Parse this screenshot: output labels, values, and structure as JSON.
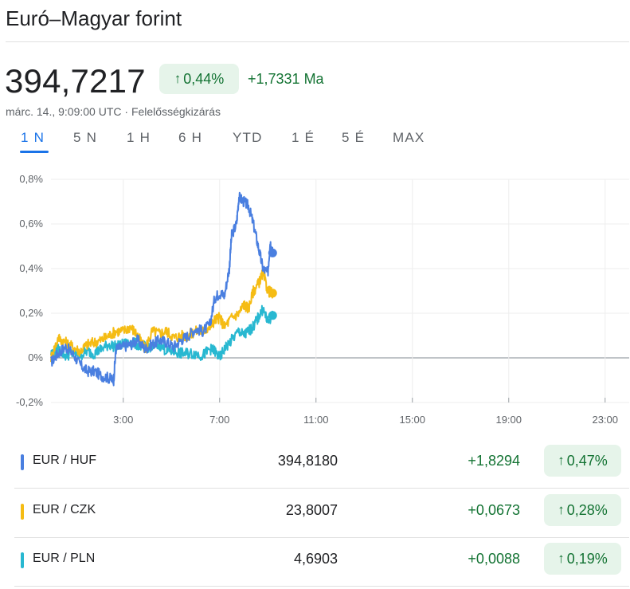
{
  "header": {
    "title": "Euró–Magyar forint",
    "price": "394,7217",
    "change_pct": "0,44%",
    "change_abs": "+1,7331 Ma",
    "meta": "márc. 14., 9:09:00 UTC · Felelősségkizárás",
    "arrow_icon": "arrow-up-icon"
  },
  "tabs": [
    {
      "label": "1 N",
      "active": true
    },
    {
      "label": "5 N",
      "active": false
    },
    {
      "label": "1 H",
      "active": false
    },
    {
      "label": "6 H",
      "active": false
    },
    {
      "label": "YTD",
      "active": false
    },
    {
      "label": "1 É",
      "active": false
    },
    {
      "label": "5 É",
      "active": false
    },
    {
      "label": "MAX",
      "active": false
    }
  ],
  "chart_data": {
    "type": "line",
    "x_unit": "hour of day",
    "xlim": [
      0,
      24
    ],
    "ylim": [
      -0.2,
      0.8
    ],
    "grid": true,
    "y_ticks": [
      {
        "value": 0.8,
        "label": "0,8%"
      },
      {
        "value": 0.6,
        "label": "0,6%"
      },
      {
        "value": 0.4,
        "label": "0,4%"
      },
      {
        "value": 0.2,
        "label": "0,2%"
      },
      {
        "value": 0.0,
        "label": "0%"
      },
      {
        "value": -0.2,
        "label": "-0,2%"
      }
    ],
    "x_ticks": [
      {
        "value": 3,
        "label": "3:00"
      },
      {
        "value": 7,
        "label": "7:00"
      },
      {
        "value": 11,
        "label": "11:00"
      },
      {
        "value": 15,
        "label": "15:00"
      },
      {
        "value": 19,
        "label": "19:00"
      },
      {
        "value": 23,
        "label": "23:00"
      }
    ],
    "series": [
      {
        "name": "EUR / HUF",
        "color": "#4a7fe0",
        "x": [
          0.0,
          0.3,
          0.6,
          0.9,
          1.2,
          1.5,
          1.8,
          2.1,
          2.4,
          2.6,
          2.7,
          3.0,
          3.3,
          3.6,
          3.9,
          4.2,
          4.5,
          4.8,
          5.1,
          5.4,
          5.7,
          6.0,
          6.3,
          6.6,
          6.8,
          7.0,
          7.2,
          7.4,
          7.5,
          7.7,
          7.8,
          8.0,
          8.2,
          8.4,
          8.6,
          8.8,
          9.0,
          9.1,
          9.2
        ],
        "y": [
          -0.02,
          0.02,
          0.05,
          0.02,
          -0.03,
          -0.06,
          -0.06,
          -0.08,
          -0.09,
          -0.1,
          0.04,
          0.05,
          0.06,
          0.08,
          0.04,
          0.06,
          0.08,
          0.07,
          0.05,
          0.08,
          0.1,
          0.13,
          0.12,
          0.15,
          0.27,
          0.29,
          0.28,
          0.4,
          0.55,
          0.6,
          0.72,
          0.7,
          0.68,
          0.6,
          0.5,
          0.4,
          0.38,
          0.52,
          0.47
        ]
      },
      {
        "name": "EUR / CZK",
        "color": "#f5bc14",
        "x": [
          0.0,
          0.3,
          0.6,
          0.9,
          1.2,
          1.5,
          1.8,
          2.1,
          2.4,
          2.7,
          3.0,
          3.3,
          3.6,
          3.9,
          4.2,
          4.5,
          4.8,
          5.1,
          5.4,
          5.7,
          6.0,
          6.3,
          6.6,
          6.8,
          7.0,
          7.2,
          7.5,
          7.8,
          8.0,
          8.2,
          8.4,
          8.6,
          8.8,
          9.0,
          9.2
        ],
        "y": [
          0.0,
          0.09,
          0.07,
          0.05,
          0.03,
          0.06,
          0.07,
          0.08,
          0.1,
          0.12,
          0.12,
          0.14,
          0.1,
          0.04,
          0.12,
          0.11,
          0.12,
          0.09,
          0.1,
          0.1,
          0.12,
          0.12,
          0.14,
          0.17,
          0.18,
          0.14,
          0.18,
          0.2,
          0.24,
          0.22,
          0.3,
          0.33,
          0.38,
          0.3,
          0.29
        ]
      },
      {
        "name": "EUR / PLN",
        "color": "#28b8d1",
        "x": [
          0.0,
          0.3,
          0.6,
          0.9,
          1.2,
          1.5,
          1.8,
          2.1,
          2.4,
          2.7,
          3.0,
          3.3,
          3.6,
          3.9,
          4.2,
          4.5,
          4.8,
          5.1,
          5.4,
          5.7,
          6.0,
          6.3,
          6.6,
          6.8,
          7.0,
          7.2,
          7.5,
          7.8,
          8.0,
          8.2,
          8.4,
          8.6,
          8.8,
          9.0,
          9.2
        ],
        "y": [
          0.02,
          0.04,
          0.01,
          0.02,
          0.01,
          0.03,
          0.02,
          0.04,
          0.06,
          0.05,
          0.06,
          0.07,
          0.06,
          0.05,
          0.05,
          0.06,
          0.03,
          0.03,
          0.02,
          0.02,
          0.02,
          0.01,
          0.04,
          0.03,
          0.0,
          0.04,
          0.08,
          0.12,
          0.1,
          0.12,
          0.14,
          0.18,
          0.22,
          0.16,
          0.19
        ]
      }
    ]
  },
  "table": {
    "rows": [
      {
        "pair": "EUR / HUF",
        "color": "#4a7fe0",
        "value": "394,8180",
        "delta": "+1,8294",
        "pct": "0,47%"
      },
      {
        "pair": "EUR / CZK",
        "color": "#f5bc14",
        "value": "23,8007",
        "delta": "+0,0673",
        "pct": "0,28%"
      },
      {
        "pair": "EUR / PLN",
        "color": "#28b8d1",
        "value": "4,6903",
        "delta": "+0,0088",
        "pct": "0,19%"
      }
    ]
  }
}
